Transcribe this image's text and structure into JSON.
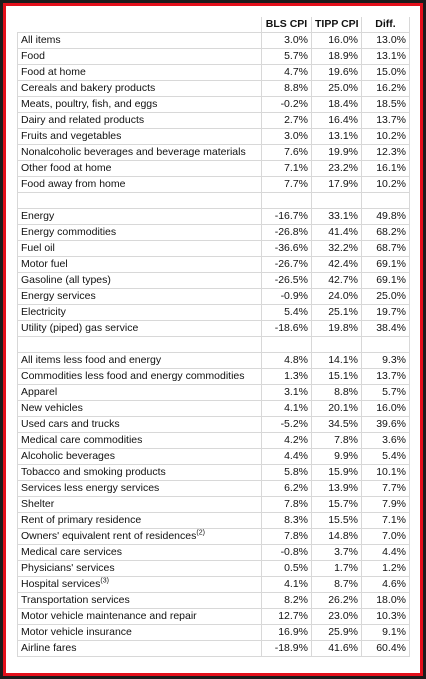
{
  "table": {
    "columns": [
      "BLS CPI",
      "TIPP CPI",
      "Diff."
    ],
    "groups": [
      {
        "rows": [
          {
            "label": "All items",
            "values": [
              "3.0%",
              "16.0%",
              "13.0%"
            ]
          },
          {
            "label": "Food",
            "values": [
              "5.7%",
              "18.9%",
              "13.1%"
            ]
          },
          {
            "label": "Food at home",
            "values": [
              "4.7%",
              "19.6%",
              "15.0%"
            ]
          },
          {
            "label": "Cereals and bakery products",
            "values": [
              "8.8%",
              "25.0%",
              "16.2%"
            ]
          },
          {
            "label": "Meats, poultry, fish, and eggs",
            "values": [
              "-0.2%",
              "18.4%",
              "18.5%"
            ]
          },
          {
            "label": "Dairy and related products",
            "values": [
              "2.7%",
              "16.4%",
              "13.7%"
            ]
          },
          {
            "label": "Fruits and vegetables",
            "values": [
              "3.0%",
              "13.1%",
              "10.2%"
            ]
          },
          {
            "label": "Nonalcoholic beverages and beverage materials",
            "values": [
              "7.6%",
              "19.9%",
              "12.3%"
            ]
          },
          {
            "label": "Other food at home",
            "values": [
              "7.1%",
              "23.2%",
              "16.1%"
            ]
          },
          {
            "label": "Food away from home",
            "values": [
              "7.7%",
              "17.9%",
              "10.2%"
            ]
          }
        ]
      },
      {
        "rows": [
          {
            "label": "Energy",
            "values": [
              "-16.7%",
              "33.1%",
              "49.8%"
            ]
          },
          {
            "label": "Energy commodities",
            "values": [
              "-26.8%",
              "41.4%",
              "68.2%"
            ]
          },
          {
            "label": "Fuel oil",
            "values": [
              "-36.6%",
              "32.2%",
              "68.7%"
            ]
          },
          {
            "label": "Motor fuel",
            "values": [
              "-26.7%",
              "42.4%",
              "69.1%"
            ]
          },
          {
            "label": "Gasoline (all types)",
            "values": [
              "-26.5%",
              "42.7%",
              "69.1%"
            ]
          },
          {
            "label": "Energy services",
            "values": [
              "-0.9%",
              "24.0%",
              "25.0%"
            ]
          },
          {
            "label": "Electricity",
            "values": [
              "5.4%",
              "25.1%",
              "19.7%"
            ]
          },
          {
            "label": "Utility (piped) gas service",
            "values": [
              "-18.6%",
              "19.8%",
              "38.4%"
            ]
          }
        ]
      },
      {
        "rows": [
          {
            "label": "All items less food and energy",
            "values": [
              "4.8%",
              "14.1%",
              "9.3%"
            ]
          },
          {
            "label": "Commodities less food and energy commodities",
            "values": [
              "1.3%",
              "15.1%",
              "13.7%"
            ]
          },
          {
            "label": "Apparel",
            "values": [
              "3.1%",
              "8.8%",
              "5.7%"
            ]
          },
          {
            "label": "New vehicles",
            "values": [
              "4.1%",
              "20.1%",
              "16.0%"
            ]
          },
          {
            "label": "Used cars and trucks",
            "values": [
              "-5.2%",
              "34.5%",
              "39.6%"
            ]
          },
          {
            "label": "Medical care commodities",
            "values": [
              "4.2%",
              "7.8%",
              "3.6%"
            ]
          },
          {
            "label": "Alcoholic beverages",
            "values": [
              "4.4%",
              "9.9%",
              "5.4%"
            ]
          },
          {
            "label": "Tobacco and smoking products",
            "values": [
              "5.8%",
              "15.9%",
              "10.1%"
            ]
          },
          {
            "label": "Services less energy services",
            "values": [
              "6.2%",
              "13.9%",
              "7.7%"
            ]
          },
          {
            "label": "Shelter",
            "values": [
              "7.8%",
              "15.7%",
              "7.9%"
            ]
          },
          {
            "label": "Rent of primary residence",
            "values": [
              "8.3%",
              "15.5%",
              "7.1%"
            ]
          },
          {
            "label": "Owners' equivalent rent of residences",
            "sup": "(2)",
            "values": [
              "7.8%",
              "14.8%",
              "7.0%"
            ]
          },
          {
            "label": "Medical care services",
            "values": [
              "-0.8%",
              "3.7%",
              "4.4%"
            ]
          },
          {
            "label": "Physicians' services",
            "values": [
              "0.5%",
              "1.7%",
              "1.2%"
            ]
          },
          {
            "label": "Hospital services",
            "sup": "(3)",
            "values": [
              "4.1%",
              "8.7%",
              "4.6%"
            ]
          },
          {
            "label": "Transportation services",
            "values": [
              "8.2%",
              "26.2%",
              "18.0%"
            ]
          },
          {
            "label": "Motor vehicle maintenance and repair",
            "values": [
              "12.7%",
              "23.0%",
              "10.3%"
            ]
          },
          {
            "label": "Motor vehicle insurance",
            "values": [
              "16.9%",
              "25.9%",
              "9.1%"
            ]
          },
          {
            "label": "Airline fares",
            "values": [
              "-18.9%",
              "41.6%",
              "60.4%"
            ]
          }
        ]
      }
    ]
  }
}
